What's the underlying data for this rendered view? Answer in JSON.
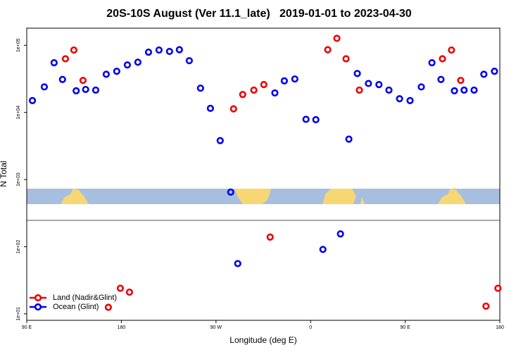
{
  "chart_data": {
    "type": "scatter",
    "title": "20S-10S August (Ver 11.1_late)   2019-01-01 to 2023-04-30",
    "x_label": "Longitude (deg E)",
    "y_label": "N Total",
    "xlim": [
      90,
      540
    ],
    "xticks": [
      {
        "value": 90,
        "label": "90 E"
      },
      180,
      {
        "value": 270,
        "label": "90 W"
      },
      {
        "value": 360,
        "label": "0"
      },
      {
        "value": 450,
        "label": "90 E"
      },
      {
        "value": 540,
        "label": "180"
      }
    ],
    "ylim": [
      8,
      180000
    ],
    "log_y": true,
    "yticks": [
      {
        "value": 10,
        "label": "1e+01"
      },
      {
        "value": 100,
        "label": "1e+02"
      },
      {
        "value": 1000,
        "label": "1e+03"
      },
      {
        "value": 10000,
        "label": "1e+04"
      },
      {
        "value": 100000,
        "label": "1e+05"
      }
    ],
    "legend": "lower left",
    "series": [
      {
        "name": "Land (Nadir&Glint)",
        "color": "#ee0000",
        "x": [
          126.8,
          134.8,
          143.5,
          167.6,
          179,
          187.7,
          286.7,
          295.4,
          306,
          315.5,
          321.5,
          376.3,
          385,
          393.7,
          406.4,
          485.4,
          494,
          502.8,
          526.8,
          538.2
        ],
        "values": [
          63000,
          85000,
          30000,
          12.5,
          24,
          21,
          11300,
          18500,
          21500,
          26000,
          139,
          86000,
          127000,
          63000,
          21500,
          63000,
          85000,
          30000,
          13,
          24
        ]
      },
      {
        "name": "Ocean (Glint)",
        "color": "#0000ee",
        "x": [
          95.4,
          106.7,
          116,
          124,
          137,
          146,
          155.6,
          165.6,
          175.6,
          185.7,
          195.7,
          205.8,
          215.8,
          225.8,
          235.2,
          244.6,
          255.3,
          264.7,
          274,
          284,
          290.7,
          326,
          335,
          345,
          355.6,
          365,
          371.7,
          388.4,
          396.4,
          404.4,
          415,
          425,
          434.5,
          444.6,
          454.6,
          465.3,
          475.4,
          484,
          496.8,
          506,
          515.5,
          524.8,
          534.9
        ],
        "values": [
          15000,
          24000,
          55000,
          31000,
          21000,
          22000,
          21500,
          37000,
          41000,
          51000,
          56000,
          79000,
          85000,
          81000,
          86000,
          59000,
          23000,
          11500,
          3800,
          650,
          56,
          19500,
          29500,
          31500,
          7900,
          7800,
          91,
          155,
          4000,
          38000,
          27000,
          26000,
          21500,
          16000,
          15000,
          24000,
          55000,
          31000,
          21000,
          21500,
          21500,
          37000,
          41000
        ]
      }
    ]
  }
}
